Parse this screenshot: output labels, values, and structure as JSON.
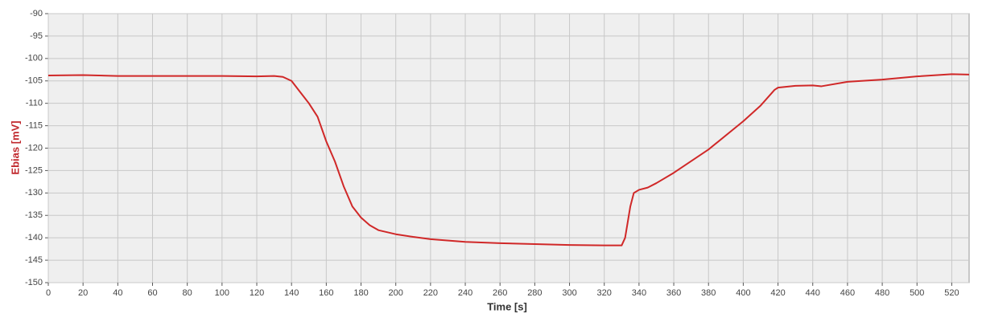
{
  "chart_data": {
    "type": "line",
    "x_label": "Time [s]",
    "y_label": "Ebias [mV]",
    "xlim": [
      0,
      530
    ],
    "ylim": [
      -150,
      -90
    ],
    "xticks": [
      0,
      20,
      40,
      60,
      80,
      100,
      120,
      140,
      160,
      180,
      200,
      220,
      240,
      260,
      280,
      300,
      320,
      340,
      360,
      380,
      400,
      420,
      440,
      460,
      480,
      500,
      520
    ],
    "yticks": [
      -150,
      -145,
      -140,
      -135,
      -130,
      -125,
      -120,
      -115,
      -110,
      -105,
      -100,
      -95,
      -90
    ],
    "grid": true,
    "series": [
      {
        "name": "Ebias",
        "color": "#d02828",
        "x": [
          0,
          20,
          40,
          60,
          80,
          100,
          120,
          130,
          135,
          140,
          145,
          150,
          155,
          160,
          165,
          170,
          175,
          180,
          185,
          190,
          200,
          210,
          220,
          240,
          260,
          280,
          300,
          320,
          330,
          332,
          335,
          337,
          340,
          345,
          350,
          360,
          380,
          400,
          410,
          418,
          420,
          430,
          440,
          445,
          460,
          480,
          500,
          520,
          530
        ],
        "values": [
          -103.8,
          -103.7,
          -103.9,
          -103.9,
          -103.9,
          -103.9,
          -104,
          -103.9,
          -104.1,
          -105,
          -107.5,
          -110,
          -113,
          -118.5,
          -123,
          -128.5,
          -133,
          -135.5,
          -137.2,
          -138.3,
          -139.2,
          -139.8,
          -140.3,
          -140.9,
          -141.2,
          -141.4,
          -141.6,
          -141.7,
          -141.7,
          -140,
          -133,
          -130,
          -129.3,
          -128.8,
          -127.8,
          -125.5,
          -120.3,
          -114,
          -110.5,
          -107,
          -106.5,
          -106.1,
          -106,
          -106.2,
          -105.2,
          -104.7,
          -104,
          -103.5,
          -103.6
        ]
      }
    ]
  }
}
